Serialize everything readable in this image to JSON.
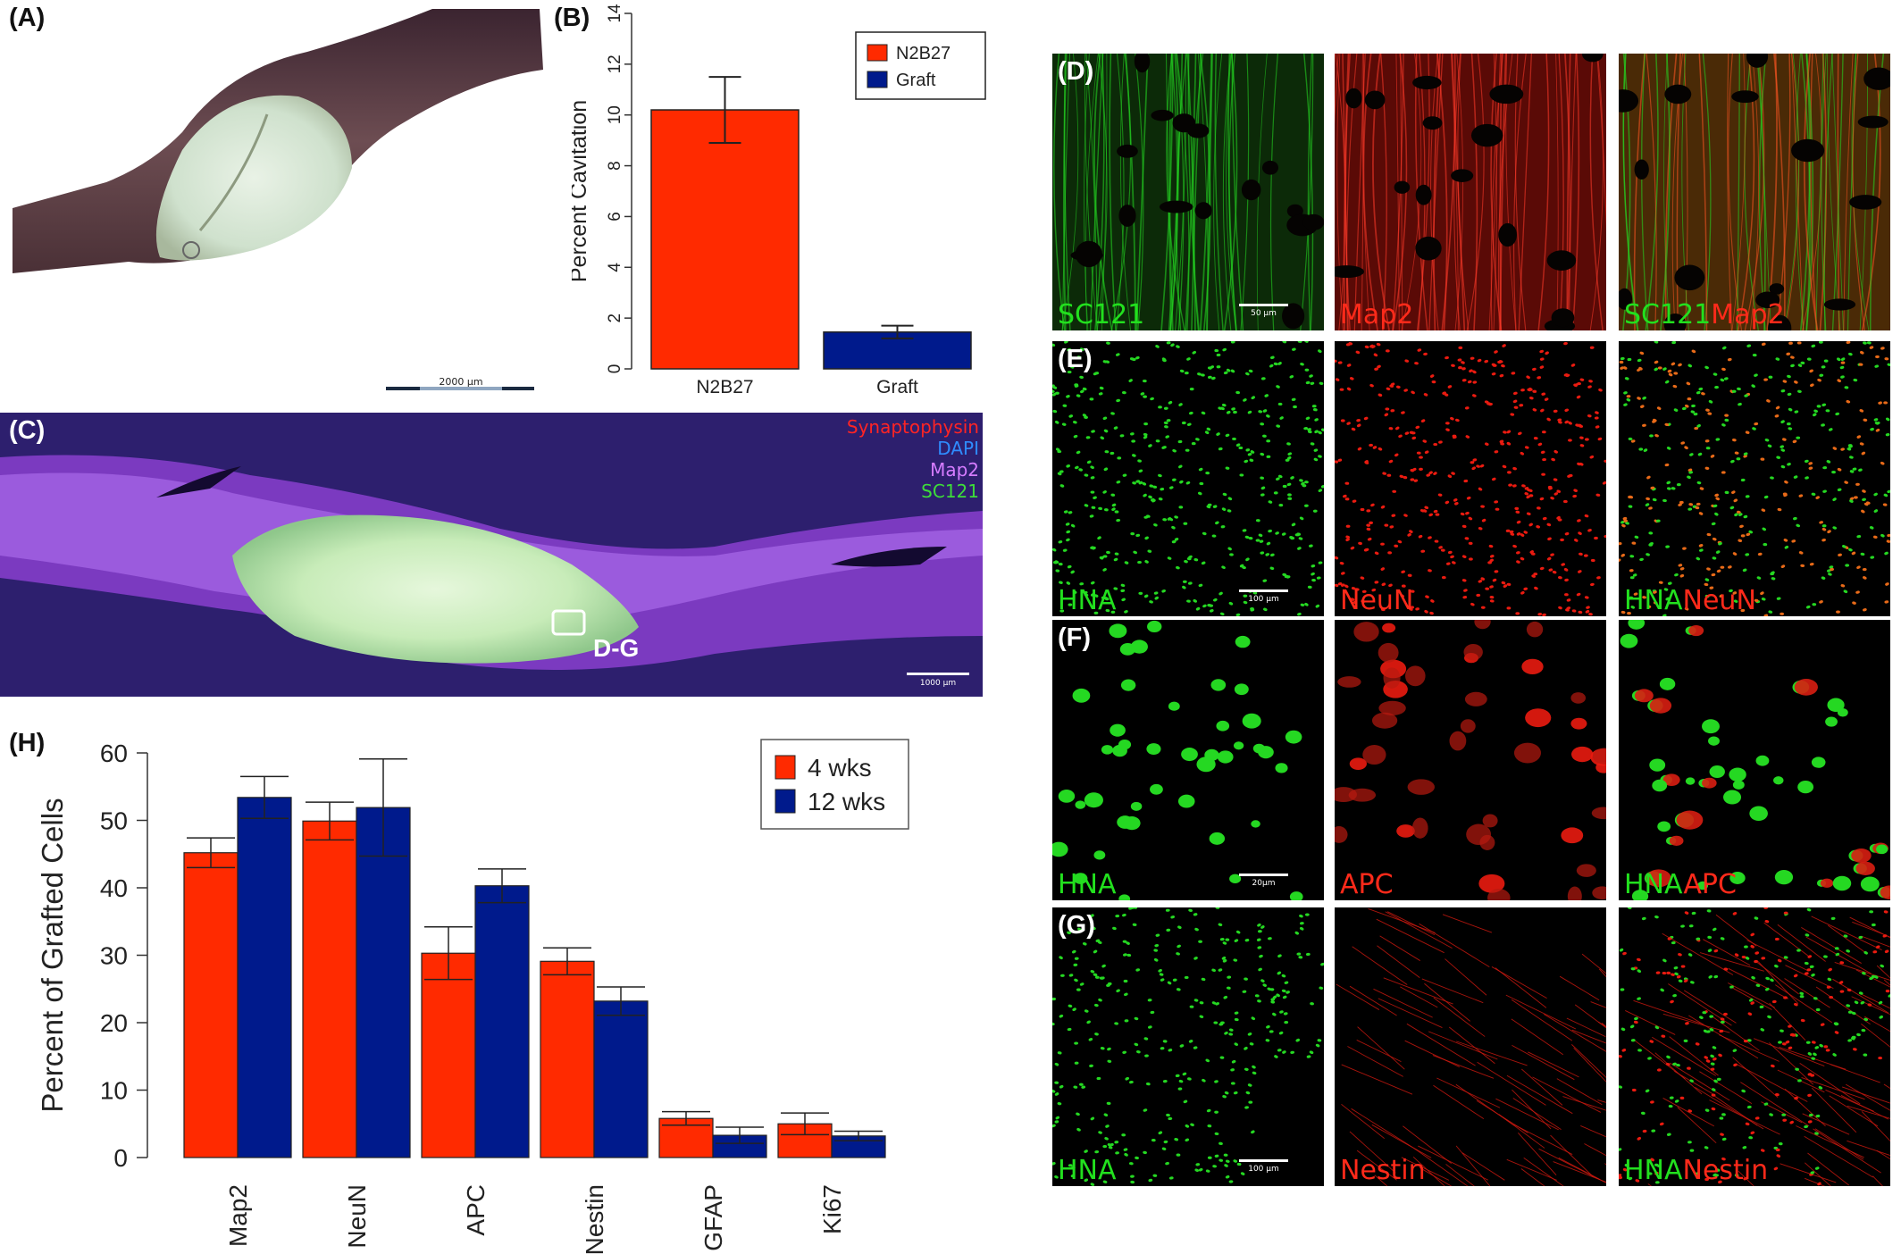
{
  "panels": {
    "a": {
      "label": "(A)",
      "scale_text": "2000 µm"
    },
    "b": {
      "label": "(B)"
    },
    "c": {
      "label": "(C)",
      "legend": [
        "Synaptophysin",
        "DAPI",
        "Map2",
        "SC121"
      ],
      "legend_colors": [
        "#ff2424",
        "#2f8cff",
        "#d57cff",
        "#3ddc3a"
      ],
      "box_label": "D-G",
      "scale_text": "1000 µm"
    },
    "h": {
      "label": "(H)"
    },
    "grid": [
      {
        "label": "(D)",
        "left": "SC121",
        "middle": "Map2",
        "right_green": "SC121",
        "right_red": "Map2",
        "scale_text": "50 µm",
        "kind": "fibers"
      },
      {
        "label": "(E)",
        "left": "HNA",
        "middle": "NeuN",
        "right_green": "HNA",
        "right_red": "NeuN",
        "scale_text": "100 µm",
        "kind": "dense"
      },
      {
        "label": "(F)",
        "left": "HNA",
        "middle": "APC",
        "right_green": "HNA",
        "right_red": "APC",
        "scale_text": "20µm",
        "kind": "sparse"
      },
      {
        "label": "(G)",
        "left": "HNA",
        "middle": "Nestin",
        "right_green": "HNA",
        "right_red": "Nestin",
        "scale_text": "100 µm",
        "kind": "nestin"
      }
    ]
  },
  "chart_data": [
    {
      "type": "bar",
      "categories": [
        "N2B27",
        "Graft"
      ],
      "values": [
        10.2,
        1.45
      ],
      "errors": [
        1.3,
        0.25
      ],
      "colors": [
        "#ff2a00",
        "#001a8c"
      ],
      "ylabel": "Percent Cavitation",
      "ylim": [
        0,
        14
      ],
      "yticks": [
        0,
        2,
        4,
        6,
        8,
        10,
        12,
        14
      ],
      "legend": [
        "N2B27",
        "Graft"
      ],
      "legend_position": "top-right"
    },
    {
      "type": "bar",
      "categories": [
        "Map2",
        "NeuN",
        "APC",
        "Nestin",
        "GFAP",
        "Ki67"
      ],
      "series": [
        {
          "name": "4 wks",
          "values": [
            45.2,
            49.9,
            30.3,
            29.1,
            5.8,
            5.0
          ],
          "errors": [
            2.2,
            2.8,
            3.9,
            2.0,
            1.0,
            1.6
          ],
          "color": "#ff2a00"
        },
        {
          "name": "12 wks",
          "values": [
            53.4,
            51.9,
            40.3,
            23.2,
            3.3,
            3.2
          ],
          "errors": [
            3.1,
            7.2,
            2.5,
            2.1,
            1.2,
            0.7
          ],
          "color": "#001a8c"
        }
      ],
      "ylabel": "Percent of Grafted Cells",
      "ylim": [
        0,
        60
      ],
      "yticks": [
        0,
        10,
        20,
        30,
        40,
        50,
        60
      ],
      "legend_position": "top-right"
    }
  ]
}
